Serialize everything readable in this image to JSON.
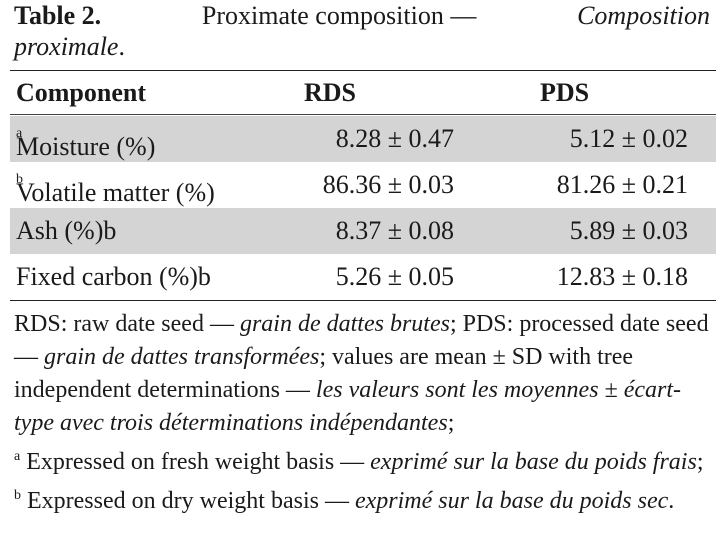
{
  "caption": {
    "label": "Table 2.",
    "title_en": "Proximate composition —",
    "title_fr_1": "Composition",
    "title_fr_2": "proximale"
  },
  "table": {
    "headers": [
      "Component",
      "RDS",
      "PDS"
    ],
    "rows": [
      {
        "component": "Moisture (%)",
        "sup": "a",
        "rds": "8.28 ± 0.47",
        "pds": "5.12 ± 0.02"
      },
      {
        "component": "Volatile matter (%)",
        "sup": "b",
        "rds": "86.36 ± 0.03",
        "pds": "81.26 ± 0.21"
      },
      {
        "component": "Ash (%)b",
        "sup": "",
        "rds": "8.37 ± 0.08",
        "pds": "5.89 ± 0.03"
      },
      {
        "component": "Fixed carbon (%)b",
        "sup": "",
        "rds": "5.26 ± 0.05",
        "pds": "12.83 ± 0.18"
      }
    ]
  },
  "notes": {
    "n1": "RDS: raw date seed — ",
    "n1_fr": "grain de dattes brutes",
    "n2": "; PDS: processed date seed — ",
    "n2_fr": "grain de dattes transformées",
    "n3": "; values are mean ± SD with tree independent determinations — ",
    "n3_fr": "les valeurs sont les moyennes ± écart-type avec trois déterminations indépendantes",
    "n3_end": ";",
    "sup_a": "a",
    "n4": " Expressed on fresh weight basis — ",
    "n4_fr": "exprimé sur la base du poids frais",
    "n4_end": "; ",
    "sup_b": "b",
    "n5": " Expressed on dry weight basis — ",
    "n5_fr": "exprimé sur la base du poids sec",
    "n5_end": "."
  }
}
